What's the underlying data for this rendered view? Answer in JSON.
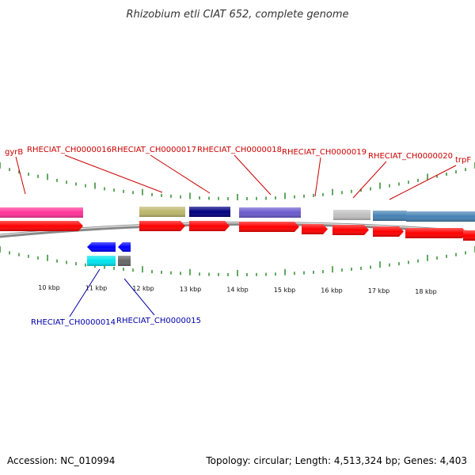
{
  "title": "Rhizobium etli CIAT 652, complete genome",
  "footer": {
    "accession": "Accession: NC_010994",
    "summary": "Topology: circular; Length: 4,513,324 bp; Genes: 4,403"
  },
  "kbp_labels": [
    "10 kbp",
    "11 kbp",
    "12 kbp",
    "13 kbp",
    "14 kbp",
    "15 kbp",
    "16 kbp",
    "17 kbp",
    "18 kbp"
  ],
  "forward_labels": [
    "gyrB",
    "RHECIAT_CH0000016",
    "RHECIAT_CH0000017",
    "RHECIAT_CH0000018",
    "RHECIAT_CH0000019",
    "RHECIAT_CH0000020",
    "trpF"
  ],
  "reverse_labels": [
    "RHECIAT_CH0000014",
    "RHECIAT_CH0000015"
  ],
  "colors": {
    "forward_label": "#cc0000",
    "reverse_label": "#0000aa",
    "cds": "#ff0000",
    "tick": "#2e8b2e",
    "backbone": "#888888",
    "gyrB": "#ff3399",
    "RHECIAT_CH0000016": "#bdb76b",
    "RHECIAT_CH0000017": "#000080",
    "RHECIAT_CH0000018": "#6a5acd",
    "RHECIAT_CH0000019": "#c0c0c0",
    "RHECIAT_CH0000020": "#4682b4",
    "trpF": "#4682b4",
    "RHECIAT_CH0000014_cog": "#00e5ee",
    "RHECIAT_CH0000015_cog": "#666666",
    "reverse_cds": "#0000ff"
  }
}
